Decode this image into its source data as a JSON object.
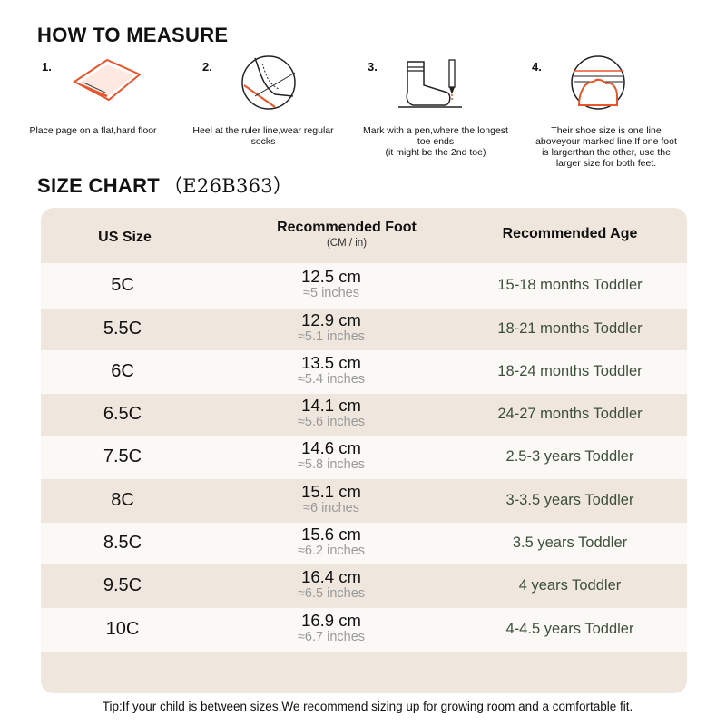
{
  "how_to_measure": {
    "title": "HOW TO MEASURE",
    "steps": [
      {
        "num": "1.",
        "caption": "Place page on a flat,hard floor",
        "icon": "paper-on-floor-icon"
      },
      {
        "num": "2.",
        "caption": "Heel at the ruler line,wear regular socks",
        "icon": "heel-at-line-icon"
      },
      {
        "num": "3.",
        "caption": "Mark with a pen,where the longest toe ends\n(it might be the 2nd toe)",
        "icon": "sock-and-pen-icon"
      },
      {
        "num": "4.",
        "caption": "Their shoe size is one line aboveyour marked line.If one foot is largerthan the other, use the larger size for both feet.",
        "icon": "toe-line-icon"
      }
    ]
  },
  "size_chart": {
    "title": "SIZE CHART",
    "code": "（E26B363）",
    "headers": {
      "size": "US Size",
      "foot": "Recommended Foot",
      "foot_sub": "(CM / in)",
      "age": "Recommended Age"
    },
    "rows": [
      {
        "size": "5C",
        "cm": "12.5 cm",
        "inches": "≈5 inches",
        "age": "15-18 months Toddler"
      },
      {
        "size": "5.5C",
        "cm": "12.9 cm",
        "inches": "≈5.1 inches",
        "age": "18-21 months Toddler"
      },
      {
        "size": "6C",
        "cm": "13.5 cm",
        "inches": "≈5.4 inches",
        "age": "18-24 months Toddler"
      },
      {
        "size": "6.5C",
        "cm": "14.1 cm",
        "inches": "≈5.6 inches",
        "age": "24-27 months Toddler"
      },
      {
        "size": "7.5C",
        "cm": "14.6 cm",
        "inches": "≈5.8 inches",
        "age": "2.5-3 years Toddler"
      },
      {
        "size": "8C",
        "cm": "15.1 cm",
        "inches": "≈6 inches",
        "age": "3-3.5 years Toddler"
      },
      {
        "size": "8.5C",
        "cm": "15.6 cm",
        "inches": "≈6.2 inches",
        "age": "3.5 years Toddler"
      },
      {
        "size": "9.5C",
        "cm": "16.4 cm",
        "inches": "≈6.5 inches",
        "age": "4 years Toddler"
      },
      {
        "size": "10C",
        "cm": "16.9 cm",
        "inches": "≈6.7 inches",
        "age": "4-4.5 years Toddler"
      }
    ]
  },
  "tip": "Tip:If your child is between sizes,We recommend sizing up for growing room and a comfortable fit.",
  "colors": {
    "table_bg": "#efe7dd",
    "row_light": "#fbf9f6",
    "age_text": "#3d4f3a",
    "accent_orange": "#e8552b"
  }
}
